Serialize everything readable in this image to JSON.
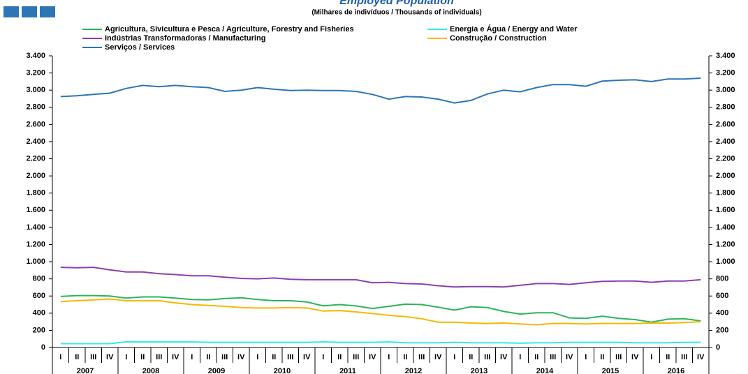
{
  "chart_data": {
    "type": "line",
    "title": "Employed Population",
    "subtitle": "(Milhares de indivíduos / Thousands of individuals)",
    "categories": [
      "I",
      "II",
      "III",
      "IV",
      "I",
      "II",
      "III",
      "IV",
      "I",
      "II",
      "III",
      "IV",
      "I",
      "II",
      "III",
      "IV",
      "I",
      "II",
      "III",
      "IV",
      "I",
      "II",
      "III",
      "IV",
      "I",
      "II",
      "III",
      "IV",
      "I",
      "II",
      "III",
      "IV",
      "I",
      "II",
      "III",
      "IV",
      "I",
      "II",
      "III",
      "IV"
    ],
    "groups": [
      "2007",
      "2008",
      "2009",
      "2010",
      "2011",
      "2012",
      "2013",
      "2014",
      "2015",
      "2016"
    ],
    "ylim": [
      0,
      3400
    ],
    "yticks": [
      0,
      200,
      400,
      600,
      800,
      {
        "value": 1000,
        "label": "1.000"
      },
      {
        "value": 1200,
        "label": "1.200"
      },
      {
        "value": 1400,
        "label": "1.400"
      },
      {
        "value": 1600,
        "label": "1.600"
      },
      {
        "value": 1800,
        "label": "1.800"
      },
      {
        "value": 2000,
        "label": "2.000"
      },
      {
        "value": 2200,
        "label": "2.200"
      },
      {
        "value": 2400,
        "label": "2.400"
      },
      {
        "value": 2600,
        "label": "2.600"
      },
      {
        "value": 2800,
        "label": "2.800"
      },
      {
        "value": 3000,
        "label": "3.000"
      },
      {
        "value": 3200,
        "label": "3.200"
      },
      {
        "value": 3400,
        "label": "3.400"
      }
    ],
    "grid": false,
    "series": [
      {
        "name": "Agricultura, Sivicultura e Pesca / Agriculture, Forestry and Fisheries",
        "color": "#2db45a",
        "values": [
          595,
          605,
          605,
          600,
          575,
          590,
          590,
          575,
          560,
          555,
          570,
          580,
          560,
          545,
          545,
          530,
          485,
          500,
          485,
          455,
          480,
          505,
          500,
          470,
          435,
          475,
          465,
          420,
          390,
          405,
          405,
          345,
          340,
          365,
          340,
          325,
          295,
          330,
          335,
          310
        ]
      },
      {
        "name": "Energia e Água / Energy and Water",
        "color": "#33e8ee",
        "values": [
          45,
          45,
          45,
          45,
          65,
          65,
          65,
          65,
          65,
          60,
          60,
          60,
          60,
          60,
          60,
          60,
          65,
          60,
          60,
          60,
          65,
          55,
          55,
          55,
          60,
          55,
          55,
          55,
          50,
          55,
          55,
          60,
          60,
          60,
          60,
          55,
          55,
          55,
          60,
          60
        ]
      },
      {
        "name": "Indústrias Transformadoras / Manufacturing",
        "color": "#8e3fb0",
        "values": [
          935,
          930,
          935,
          905,
          880,
          880,
          860,
          850,
          835,
          835,
          820,
          805,
          800,
          810,
          795,
          790,
          790,
          790,
          790,
          755,
          760,
          745,
          740,
          720,
          705,
          710,
          710,
          705,
          725,
          745,
          745,
          735,
          755,
          770,
          775,
          775,
          760,
          775,
          775,
          790
        ]
      },
      {
        "name": "Construção / Construction",
        "color": "#f5b800",
        "values": [
          535,
          545,
          555,
          565,
          545,
          545,
          545,
          520,
          500,
          490,
          480,
          465,
          460,
          460,
          465,
          460,
          425,
          430,
          415,
          395,
          375,
          360,
          335,
          295,
          295,
          285,
          280,
          285,
          275,
          265,
          280,
          280,
          275,
          280,
          280,
          280,
          285,
          285,
          290,
          300
        ]
      },
      {
        "name": "Serviços / Services",
        "color": "#2e75b6",
        "values": [
          2925,
          2935,
          2950,
          2965,
          3020,
          3055,
          3040,
          3055,
          3040,
          3030,
          2985,
          3000,
          3030,
          3010,
          2995,
          3000,
          2995,
          2995,
          2985,
          2950,
          2895,
          2925,
          2920,
          2895,
          2850,
          2880,
          2955,
          3000,
          2980,
          3030,
          3065,
          3065,
          3045,
          3105,
          3115,
          3120,
          3100,
          3130,
          3130,
          3140
        ]
      }
    ]
  }
}
